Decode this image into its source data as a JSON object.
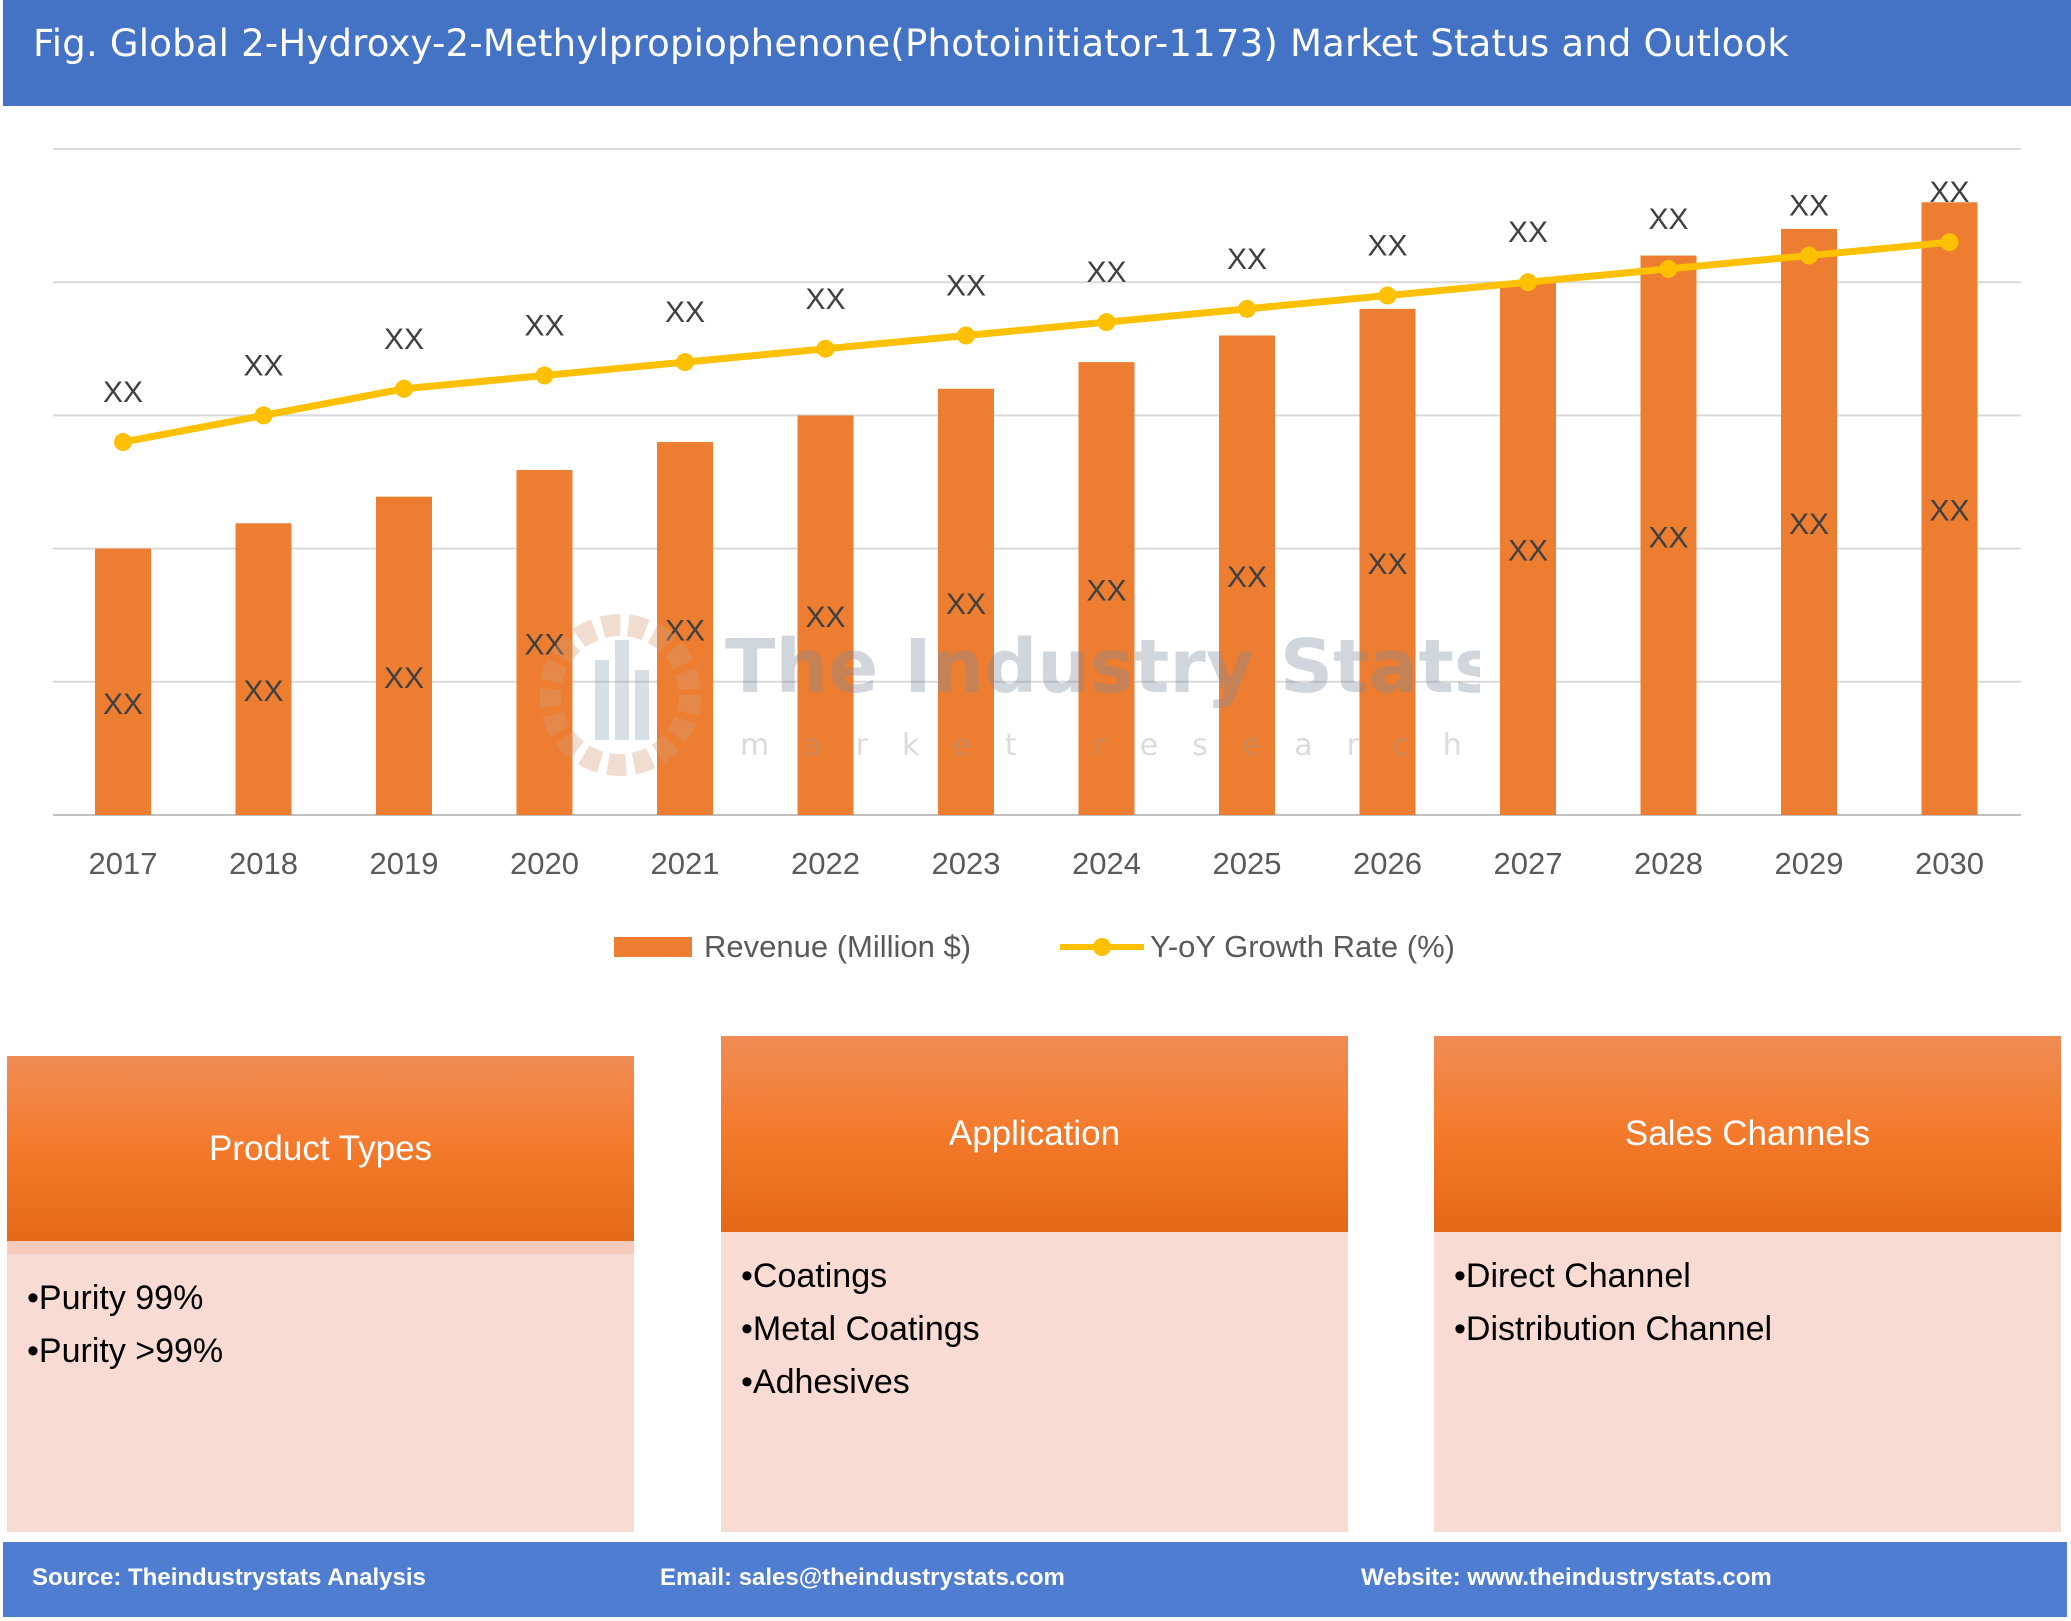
{
  "title": "Fig. Global 2-Hydroxy-2-Methylpropiophenone(Photoinitiator-1173) Market Status and Outlook",
  "chart_data": {
    "type": "bar+line",
    "categories": [
      "2017",
      "2018",
      "2019",
      "2020",
      "2021",
      "2022",
      "2023",
      "2024",
      "2025",
      "2026",
      "2027",
      "2028",
      "2029",
      "2030"
    ],
    "series": [
      {
        "name": "Revenue (Million $)",
        "type": "bar",
        "color": "#ED7D31",
        "values": [
          2.0,
          2.19,
          2.39,
          2.59,
          2.8,
          3.0,
          3.2,
          3.4,
          3.6,
          3.8,
          4.0,
          4.2,
          4.4,
          4.6
        ],
        "labels": [
          "XX",
          "XX",
          "XX",
          "XX",
          "XX",
          "XX",
          "XX",
          "XX",
          "XX",
          "XX",
          "XX",
          "XX",
          "XX",
          "XX"
        ]
      },
      {
        "name": "Y-oY Growth Rate (%)",
        "type": "line",
        "color": "#FFC000",
        "values": [
          2.8,
          3.0,
          3.2,
          3.3,
          3.4,
          3.5,
          3.6,
          3.7,
          3.8,
          3.9,
          4.0,
          4.1,
          4.2,
          4.3
        ],
        "labels": [
          "XX",
          "XX",
          "XX",
          "XX",
          "XX",
          "XX",
          "XX",
          "XX",
          "XX",
          "XX",
          "XX",
          "XX",
          "XX",
          "XX"
        ]
      }
    ],
    "ylim": [
      0,
      5
    ],
    "grid": true,
    "legend": "bottom"
  },
  "watermark": {
    "name": "The Industry Stats",
    "tagline": "market research"
  },
  "boxes": [
    {
      "title": "Product Types",
      "items": [
        "Purity 99%",
        "Purity >99%"
      ]
    },
    {
      "title": "Application",
      "items": [
        "Coatings",
        "Metal Coatings",
        "Adhesives"
      ]
    },
    {
      "title": "Sales Channels",
      "items": [
        "Direct Channel",
        "Distribution Channel"
      ]
    }
  ],
  "footer": {
    "source": "Source: Theindustrystats Analysis",
    "email": "Email: sales@theindustrystats.com",
    "website": "Website: www.theindustrystats.com"
  }
}
